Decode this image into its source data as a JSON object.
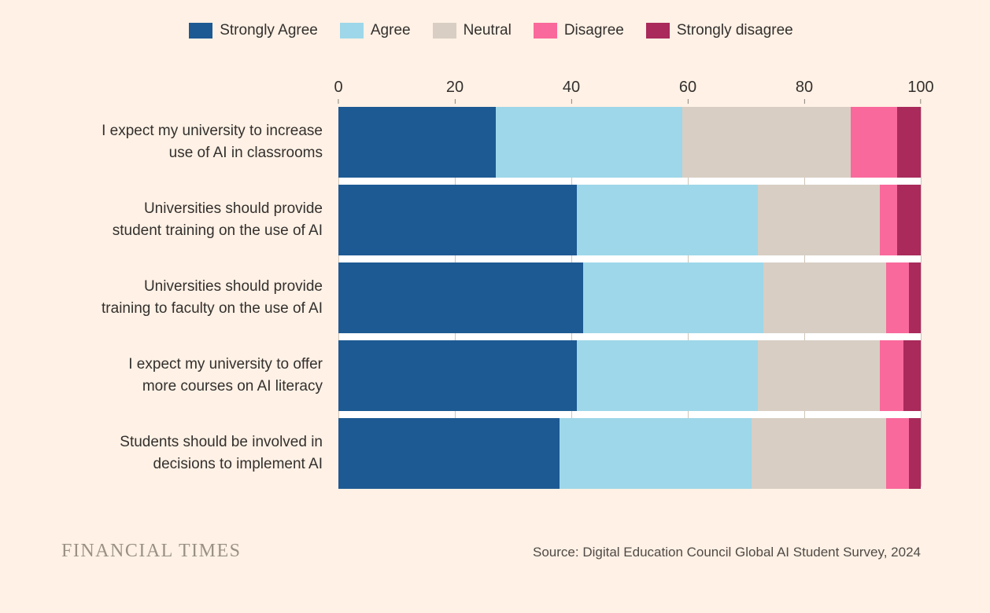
{
  "colors": {
    "background": "#FFF1E5",
    "axis_line": "#33302E",
    "gridline": "#CDC5B9",
    "gap_band": "#FFFFFF"
  },
  "chart_data": {
    "type": "bar",
    "stacked": true,
    "orientation": "horizontal",
    "xlim": [
      0,
      100
    ],
    "x_ticks": [
      0,
      20,
      40,
      60,
      80,
      100
    ],
    "grid": true,
    "legend_position": "top",
    "categories": [
      "I expect my university to increase\nuse of AI in classrooms",
      "Universities should provide\nstudent training on the use of AI",
      "Universities should provide\ntraining to faculty on the use of AI",
      "I expect my university to offer\nmore courses on AI literacy",
      "Students should be involved in\ndecisions to implement AI"
    ],
    "series": [
      {
        "name": "Strongly Agree",
        "color": "#1D5A93",
        "values": [
          27,
          41,
          42,
          41,
          38
        ]
      },
      {
        "name": "Agree",
        "color": "#9ED7E9",
        "values": [
          32,
          31,
          31,
          31,
          33
        ]
      },
      {
        "name": "Neutral",
        "color": "#D8CEC3",
        "values": [
          29,
          21,
          21,
          21,
          23
        ]
      },
      {
        "name": "Disagree",
        "color": "#F9699B",
        "values": [
          8,
          3,
          4,
          4,
          4
        ]
      },
      {
        "name": "Strongly disagree",
        "color": "#A92A5B",
        "values": [
          4,
          4,
          2,
          3,
          2
        ]
      }
    ]
  },
  "footer": {
    "brand": "FINANCIAL TIMES",
    "source": "Source: Digital Education Council Global AI Student Survey, 2024"
  }
}
